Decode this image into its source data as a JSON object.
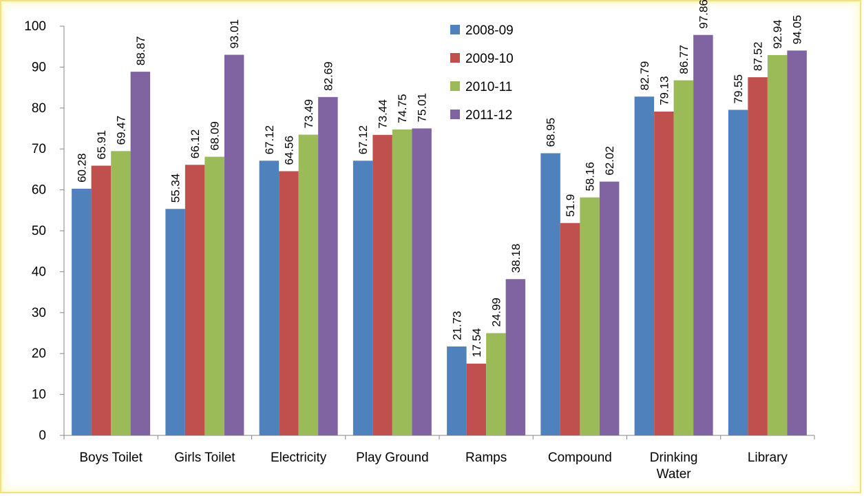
{
  "chart_data": {
    "type": "bar",
    "categories": [
      [
        "Boys Toilet"
      ],
      [
        "Girls Toilet"
      ],
      [
        "Electricity"
      ],
      [
        "Play Ground"
      ],
      [
        "Ramps"
      ],
      [
        "Compound"
      ],
      [
        "Drinking",
        "Water"
      ],
      [
        "Library"
      ]
    ],
    "series": [
      {
        "name": "2008-09",
        "color": "#4f81bd",
        "values": [
          60.28,
          55.34,
          67.12,
          67.12,
          21.73,
          68.95,
          82.79,
          79.55
        ]
      },
      {
        "name": "2009-10",
        "color": "#c0504d",
        "values": [
          65.91,
          66.12,
          64.56,
          73.44,
          17.54,
          51.9,
          79.13,
          87.52
        ]
      },
      {
        "name": "2010-11",
        "color": "#9bbb59",
        "values": [
          69.47,
          68.09,
          73.49,
          74.75,
          24.99,
          58.16,
          86.77,
          92.94
        ]
      },
      {
        "name": "2011-12",
        "color": "#8064a2",
        "values": [
          88.87,
          93.01,
          82.69,
          75.01,
          38.18,
          62.02,
          97.86,
          94.05
        ]
      }
    ],
    "ylim": [
      0,
      100
    ],
    "yticks": [
      0,
      10,
      20,
      30,
      40,
      50,
      60,
      70,
      80,
      90,
      100
    ],
    "grid": false,
    "legend_position": "top-center",
    "data_labels": true,
    "title": "",
    "xlabel": "",
    "ylabel": ""
  }
}
